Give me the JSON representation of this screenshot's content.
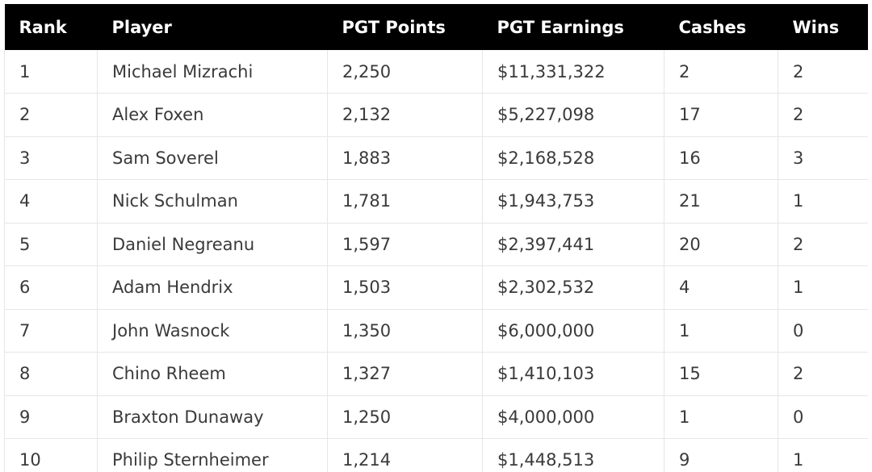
{
  "table": {
    "header": [
      "Rank",
      "Player",
      "PGT Points",
      "PGT Earnings",
      "Cashes",
      "Wins"
    ],
    "rows": [
      [
        "1",
        "Michael Mizrachi",
        "2,250",
        "$11,331,322",
        "2",
        "2"
      ],
      [
        "2",
        "Alex Foxen",
        "2,132",
        "$5,227,098",
        "17",
        "2"
      ],
      [
        "3",
        "Sam Soverel",
        "1,883",
        "$2,168,528",
        "16",
        "3"
      ],
      [
        "4",
        "Nick Schulman",
        "1,781",
        "$1,943,753",
        "21",
        "1"
      ],
      [
        "5",
        "Daniel Negreanu",
        "1,597",
        "$2,397,441",
        "20",
        "2"
      ],
      [
        "6",
        "Adam Hendrix",
        "1,503",
        "$2,302,532",
        "4",
        "1"
      ],
      [
        "7",
        "John Wasnock",
        "1,350",
        "$6,000,000",
        "1",
        "0"
      ],
      [
        "8",
        "Chino Rheem",
        "1,327",
        "$1,410,103",
        "15",
        "2"
      ],
      [
        "9",
        "Braxton Dunaway",
        "1,250",
        "$4,000,000",
        "1",
        "0"
      ],
      [
        "10",
        "Philip Sternheimer",
        "1,214",
        "$1,448,513",
        "9",
        "1"
      ]
    ]
  }
}
